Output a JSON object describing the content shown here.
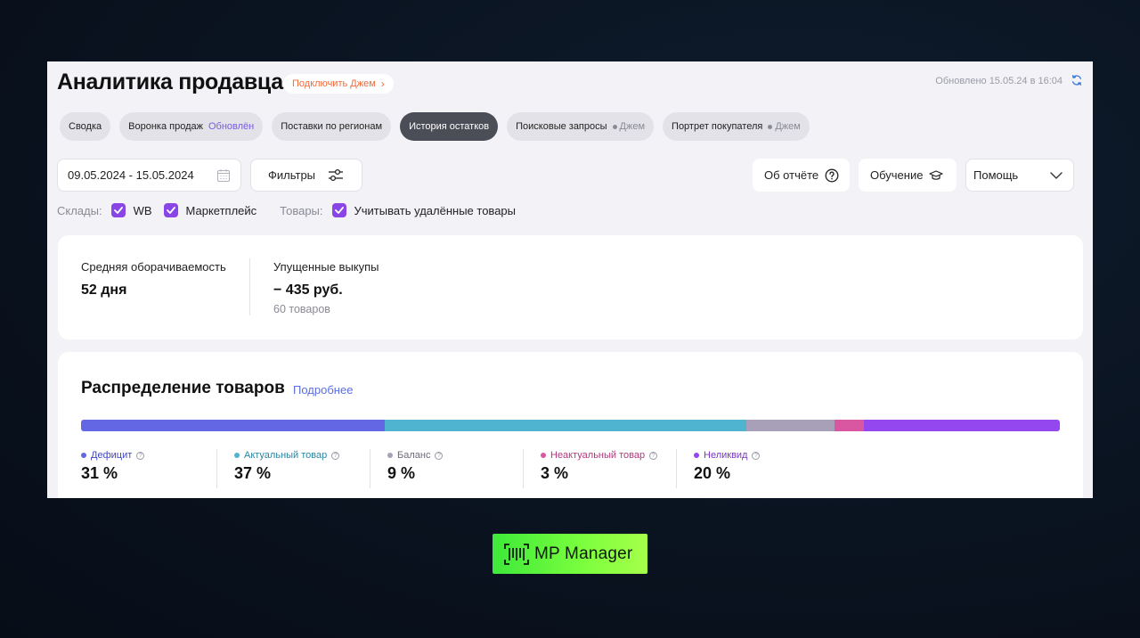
{
  "header": {
    "title": "Аналитика продавца",
    "promo_label": "Подключить Джем",
    "updated_text": "Обновлено 15.05.24 в 16:04"
  },
  "tabs": [
    {
      "label": "Сводка",
      "suffix": ""
    },
    {
      "label": "Воронка продаж",
      "suffix": "Обновлён"
    },
    {
      "label": "Поставки по регионам",
      "suffix": ""
    },
    {
      "label": "История остатков",
      "suffix": "",
      "active": true
    },
    {
      "label": "Поисковые запросы",
      "suffix": "Джем"
    },
    {
      "label": "Портрет покупателя",
      "suffix": "Джем"
    }
  ],
  "toolbar": {
    "date_range": "09.05.2024 - 15.05.2024",
    "filters_label": "Фильтры",
    "about_label": "Об отчёте",
    "learning_label": "Обучение",
    "help_label": "Помощь"
  },
  "checks": {
    "warehouses_label": "Склады:",
    "wb_label": "WB",
    "marketplace_label": "Маркетплейс",
    "goods_label": "Товары:",
    "deleted_label": "Учитывать удалённые товары"
  },
  "stats": {
    "turnover_label": "Средняя оборачиваемость",
    "turnover_value": "52 дня",
    "missed_label": "Упущенные выкупы",
    "missed_value": "− 435 руб.",
    "missed_sub": "60 товаров"
  },
  "distribution": {
    "title": "Распределение товаров",
    "more_link": "Подробнее",
    "segments": [
      {
        "label": "Дефицит",
        "value": "31 %",
        "share": 31,
        "color": "#6467e4",
        "text_color": "#3f46c4"
      },
      {
        "label": "Актуальный товар",
        "value": "37 %",
        "share": 37,
        "color": "#4fb4d0",
        "text_color": "#2a86a3"
      },
      {
        "label": "Баланс",
        "value": "9 %",
        "share": 9,
        "color": "#a8a0b8",
        "text_color": "#6e6a78"
      },
      {
        "label": "Неактуальный товар",
        "value": "3 %",
        "share": 3,
        "color": "#d957a0",
        "text_color": "#b0387c"
      },
      {
        "label": "Неликвид",
        "value": "20 %",
        "share": 20,
        "color": "#9446ef",
        "text_color": "#7a35c8"
      }
    ]
  },
  "brand": {
    "name": "MP Manager"
  }
}
